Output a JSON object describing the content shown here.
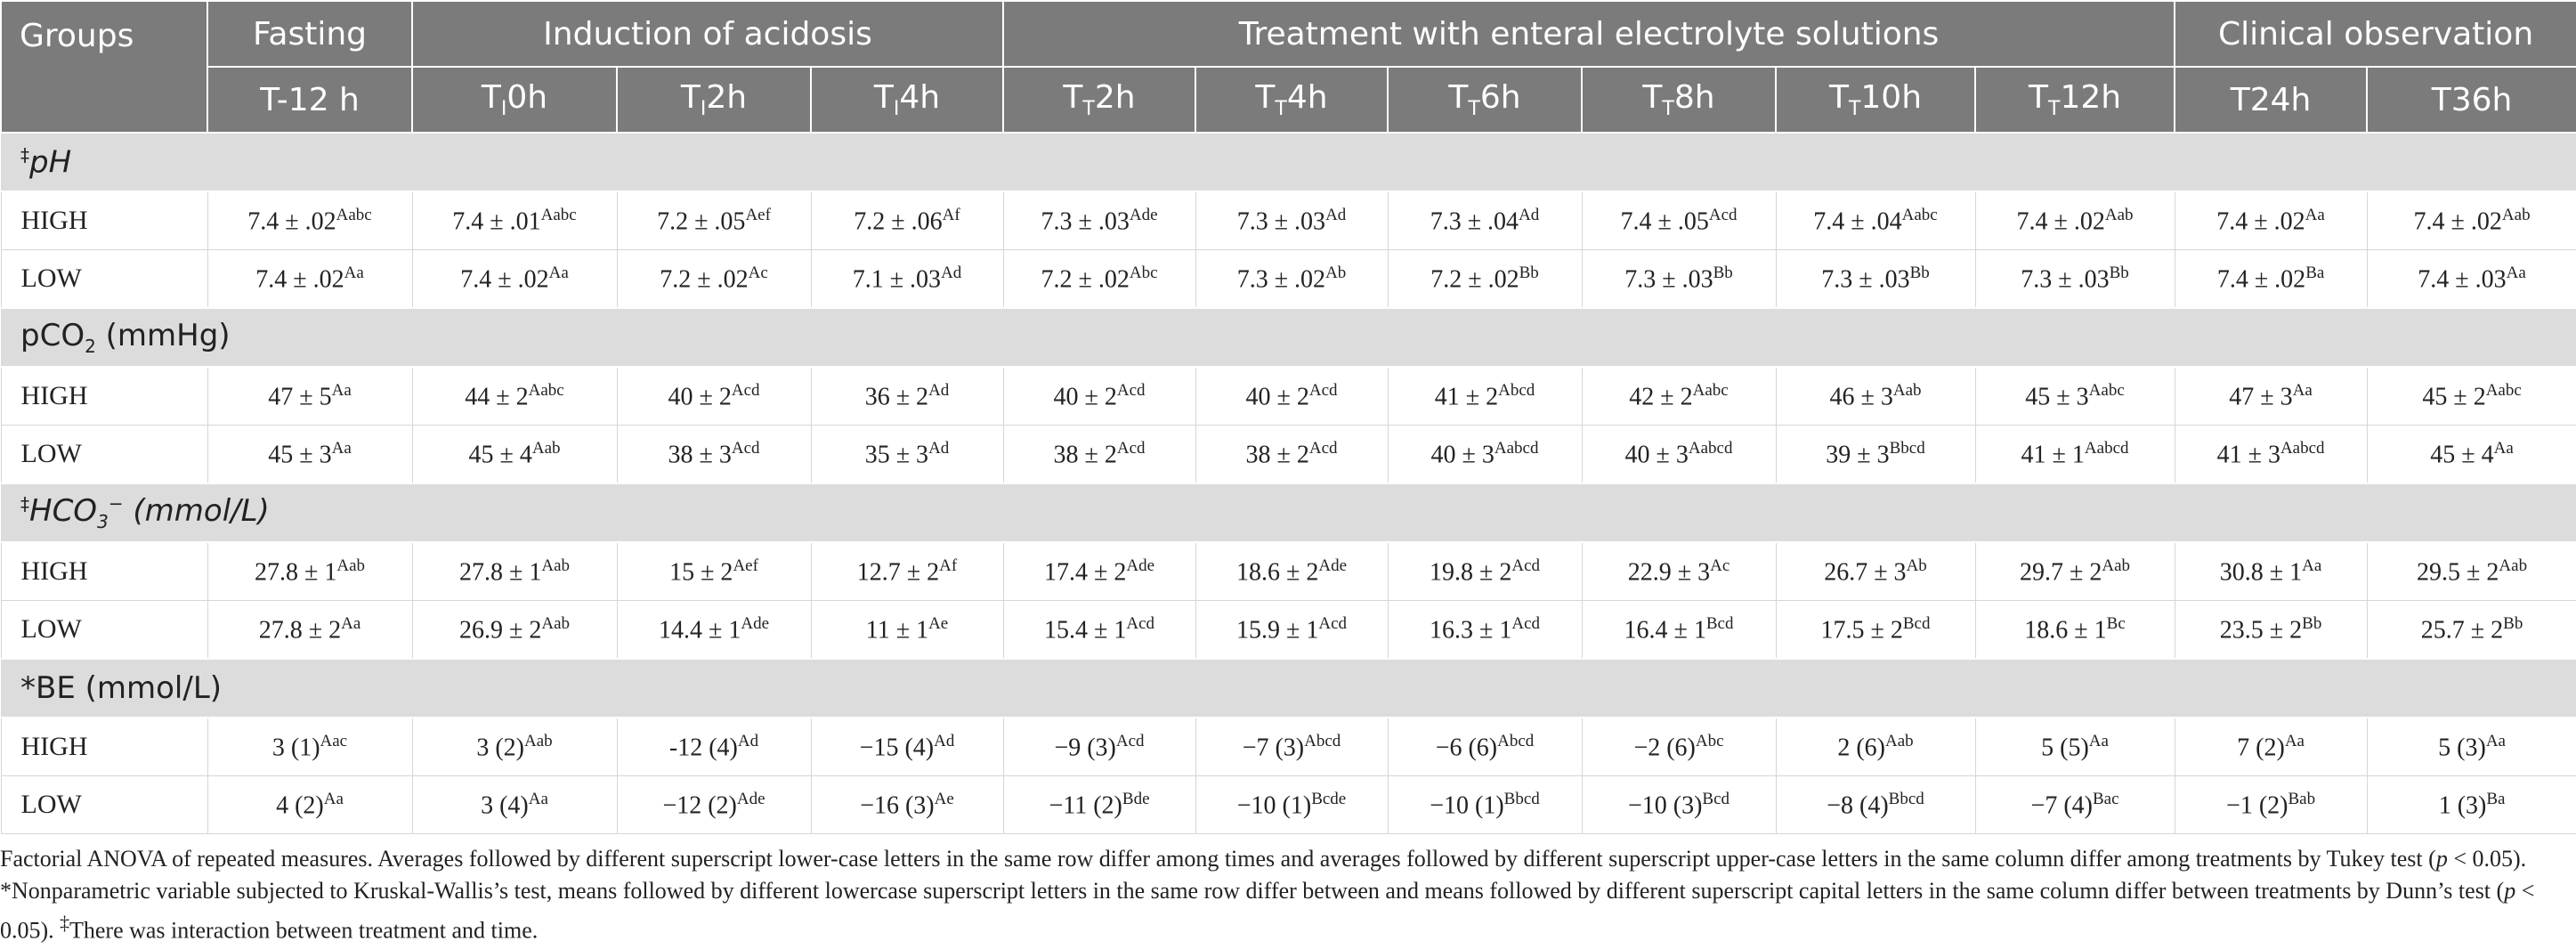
{
  "header": {
    "groups": "Groups",
    "fasting": "Fasting",
    "induction": "Induction of acidosis",
    "treatment": "Treatment with enteral electrolyte solutions",
    "clinical": "Clinical observation",
    "times": {
      "t12": "T-12 h",
      "ti0": {
        "T": "T",
        "sub": "I",
        "h": "0h"
      },
      "ti2": {
        "T": "T",
        "sub": "I",
        "h": "2h"
      },
      "ti4": {
        "T": "T",
        "sub": "I",
        "h": "4h"
      },
      "tt2": {
        "T": "T",
        "sub": "T",
        "h": "2h"
      },
      "tt4": {
        "T": "T",
        "sub": "T",
        "h": "4h"
      },
      "tt6": {
        "T": "T",
        "sub": "T",
        "h": "6h"
      },
      "tt8": {
        "T": "T",
        "sub": "T",
        "h": "8h"
      },
      "tt10": {
        "T": "T",
        "sub": "T",
        "h": "10h"
      },
      "tt12": {
        "T": "T",
        "sub": "T",
        "h": "12h"
      },
      "t24": "T24h",
      "t36": "T36h"
    }
  },
  "sections": {
    "ph": {
      "mark": "‡",
      "title": "pH",
      "high": {
        "label": "HIGH",
        "cells": [
          {
            "v": "7.4 ± .02",
            "s": "Aabc"
          },
          {
            "v": "7.4 ± .01",
            "s": "Aabc"
          },
          {
            "v": "7.2 ± .05",
            "s": "Aef"
          },
          {
            "v": "7.2 ± .06",
            "s": "Af"
          },
          {
            "v": "7.3 ± .03",
            "s": "Ade"
          },
          {
            "v": "7.3 ± .03",
            "s": "Ad"
          },
          {
            "v": "7.3 ± .04",
            "s": "Ad"
          },
          {
            "v": "7.4 ± .05",
            "s": "Acd"
          },
          {
            "v": "7.4 ± .04",
            "s": "Aabc"
          },
          {
            "v": "7.4 ± .02",
            "s": "Aab"
          },
          {
            "v": "7.4 ± .02",
            "s": "Aa"
          },
          {
            "v": "7.4 ± .02",
            "s": "Aab"
          }
        ]
      },
      "low": {
        "label": "LOW",
        "cells": [
          {
            "v": "7.4 ± .02",
            "s": "Aa"
          },
          {
            "v": "7.4 ± .02",
            "s": "Aa"
          },
          {
            "v": "7.2 ± .02",
            "s": "Ac"
          },
          {
            "v": "7.1 ± .03",
            "s": "Ad"
          },
          {
            "v": "7.2 ± .02",
            "s": "Abc"
          },
          {
            "v": "7.3 ± .02",
            "s": "Ab"
          },
          {
            "v": "7.2 ± .02",
            "s": "Bb"
          },
          {
            "v": "7.3 ± .03",
            "s": "Bb"
          },
          {
            "v": "7.3 ± .03",
            "s": "Bb"
          },
          {
            "v": "7.3 ± .03",
            "s": "Bb"
          },
          {
            "v": "7.4 ± .02",
            "s": "Ba"
          },
          {
            "v": "7.4 ± .03",
            "s": "Aa"
          }
        ]
      }
    },
    "pco2": {
      "title_pre": "pCO",
      "title_sub": "2",
      "title_post": " (mmHg)",
      "high": {
        "label": "HIGH",
        "cells": [
          {
            "v": "47 ± 5",
            "s": "Aa"
          },
          {
            "v": "44 ± 2",
            "s": "Aabc"
          },
          {
            "v": "40 ± 2",
            "s": "Acd"
          },
          {
            "v": "36 ± 2",
            "s": "Ad"
          },
          {
            "v": "40 ± 2",
            "s": "Acd"
          },
          {
            "v": "40 ± 2",
            "s": "Acd"
          },
          {
            "v": "41 ± 2",
            "s": "Abcd"
          },
          {
            "v": "42 ± 2",
            "s": "Aabc"
          },
          {
            "v": "46 ± 3",
            "s": "Aab"
          },
          {
            "v": "45 ± 3",
            "s": "Aabc"
          },
          {
            "v": "47 ± 3",
            "s": "Aa"
          },
          {
            "v": "45 ± 2",
            "s": "Aabc"
          }
        ]
      },
      "low": {
        "label": "LOW",
        "cells": [
          {
            "v": "45 ± 3",
            "s": "Aa"
          },
          {
            "v": "45 ± 4",
            "s": "Aab"
          },
          {
            "v": "38 ± 3",
            "s": "Acd"
          },
          {
            "v": "35 ± 3",
            "s": "Ad"
          },
          {
            "v": "38 ± 2",
            "s": "Acd"
          },
          {
            "v": "38 ± 2",
            "s": "Acd"
          },
          {
            "v": "40 ± 3",
            "s": "Aabcd"
          },
          {
            "v": "40 ± 3",
            "s": "Aabcd"
          },
          {
            "v": "39 ± 3",
            "s": "Bbcd"
          },
          {
            "v": "41 ± 1",
            "s": "Aabcd"
          },
          {
            "v": "41 ± 3",
            "s": "Aabcd"
          },
          {
            "v": "45 ± 4",
            "s": "Aa"
          }
        ]
      }
    },
    "hco3": {
      "mark": "‡",
      "title_pre": "HCO",
      "title_sub": "3",
      "title_sup": "−",
      "title_post": " (mmol/L)",
      "high": {
        "label": "HIGH",
        "cells": [
          {
            "v": "27.8 ± 1",
            "s": "Aab"
          },
          {
            "v": "27.8 ± 1",
            "s": "Aab"
          },
          {
            "v": "15 ± 2",
            "s": "Aef"
          },
          {
            "v": "12.7 ± 2",
            "s": "Af"
          },
          {
            "v": "17.4 ± 2",
            "s": "Ade"
          },
          {
            "v": "18.6 ± 2",
            "s": "Ade"
          },
          {
            "v": "19.8 ± 2",
            "s": "Acd"
          },
          {
            "v": "22.9 ± 3",
            "s": "Ac"
          },
          {
            "v": "26.7 ± 3",
            "s": "Ab"
          },
          {
            "v": "29.7 ± 2",
            "s": "Aab"
          },
          {
            "v": "30.8 ± 1",
            "s": "Aa"
          },
          {
            "v": "29.5 ± 2",
            "s": "Aab"
          }
        ]
      },
      "low": {
        "label": "LOW",
        "cells": [
          {
            "v": "27.8 ± 2",
            "s": "Aa"
          },
          {
            "v": "26.9 ± 2",
            "s": "Aab"
          },
          {
            "v": "14.4 ± 1",
            "s": "Ade"
          },
          {
            "v": "11 ± 1",
            "s": "Ae"
          },
          {
            "v": "15.4 ± 1",
            "s": "Acd"
          },
          {
            "v": "15.9 ± 1",
            "s": "Acd"
          },
          {
            "v": "16.3 ± 1",
            "s": "Acd"
          },
          {
            "v": "16.4 ± 1",
            "s": "Bcd"
          },
          {
            "v": "17.5 ± 2",
            "s": "Bcd"
          },
          {
            "v": "18.6 ± 1",
            "s": "Bc"
          },
          {
            "v": "23.5 ± 2",
            "s": "Bb"
          },
          {
            "v": "25.7 ± 2",
            "s": "Bb"
          }
        ]
      }
    },
    "be": {
      "title": "*BE (mmol/L)",
      "high": {
        "label": "HIGH",
        "cells": [
          {
            "v": "3 (1)",
            "s": "Aac"
          },
          {
            "v": "3 (2)",
            "s": "Aab"
          },
          {
            "v": "-12 (4)",
            "s": "Ad"
          },
          {
            "v": "−15 (4)",
            "s": "Ad"
          },
          {
            "v": "−9 (3)",
            "s": "Acd"
          },
          {
            "v": "−7 (3)",
            "s": "Abcd"
          },
          {
            "v": "−6 (6)",
            "s": "Abcd"
          },
          {
            "v": "−2 (6)",
            "s": "Abc"
          },
          {
            "v": "2 (6)",
            "s": "Aab"
          },
          {
            "v": "5 (5)",
            "s": "Aa"
          },
          {
            "v": "7 (2)",
            "s": "Aa"
          },
          {
            "v": "5 (3)",
            "s": "Aa"
          }
        ]
      },
      "low": {
        "label": "LOW",
        "cells": [
          {
            "v": "4 (2)",
            "s": "Aa"
          },
          {
            "v": "3 (4)",
            "s": "Aa"
          },
          {
            "v": "−12 (2)",
            "s": "Ade"
          },
          {
            "v": "−16 (3)",
            "s": "Ae"
          },
          {
            "v": "−11 (2)",
            "s": "Bde"
          },
          {
            "v": "−10 (1)",
            "s": "Bcde"
          },
          {
            "v": "−10 (1)",
            "s": "Bbcd"
          },
          {
            "v": "−10 (3)",
            "s": "Bcd"
          },
          {
            "v": "−8 (4)",
            "s": "Bbcd"
          },
          {
            "v": "−7 (4)",
            "s": "Bac"
          },
          {
            "v": "−1 (2)",
            "s": "Bab"
          },
          {
            "v": "1 (3)",
            "s": "Ba"
          }
        ]
      }
    }
  },
  "footnote": {
    "p1": "Factorial ANOVA of repeated measures. Averages followed by different superscript lower-case letters in the same row differ among times and averages followed by different superscript upper-case letters in the same column differ among treatments by Tukey test",
    "p_open": "(",
    "p_italic": "p",
    "p2": " < 0.05). *Nonparametric variable subjected to Kruskal-Wallis’s test, means followed by different lowercase superscript letters in the same row differ between and means followed by different superscript capital letters in the same column differ between treatments by Dunn’s test (",
    "p3": " < 0.05). ",
    "mark": "‡",
    "p4": "There was interaction between treatment and time."
  }
}
